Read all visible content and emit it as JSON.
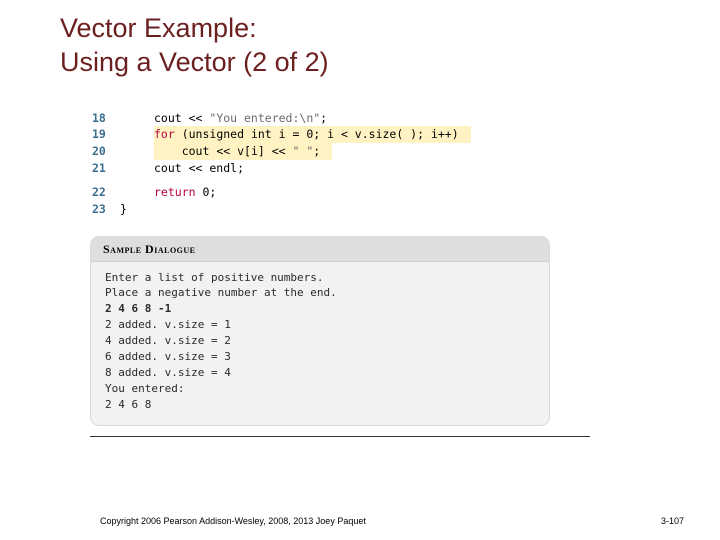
{
  "title_color": "#6b1f1f",
  "title_line1": "Vector Example:",
  "title_line2": "Using a Vector (2 of 2)",
  "lineno_color": "#3a6e8f",
  "code": {
    "r18": {
      "no": "18",
      "prefix": "cout << ",
      "str": "\"You entered:\\n\"",
      "suffix": ";"
    },
    "r19": {
      "no": "19",
      "kw": "for",
      "text": " (unsigned int i = 0; i < v.size( ); i++)"
    },
    "r20": {
      "no": "20",
      "indent": "    ",
      "prefix": "cout << v[i] << ",
      "str": "\" \"",
      "suffix": ";"
    },
    "r21": {
      "no": "21",
      "text": "cout << endl;"
    },
    "r22": {
      "no": "22",
      "kw": "return",
      "text": " 0;"
    },
    "r23": {
      "no": "23",
      "text": "}"
    }
  },
  "dialogue": {
    "header": "Sample Dialogue",
    "l1": "Enter a list of positive numbers.",
    "l2": "Place a negative number at the end.",
    "l3": "2 4 6 8 -1",
    "l4": "2 added. v.size = 1",
    "l5": "4 added. v.size = 2",
    "l6": "6 added. v.size = 3",
    "l7": "8 added. v.size = 4",
    "l8": "You entered:",
    "l9": "2 4 6 8"
  },
  "footer_left": "Copyright 2006 Pearson Addison-Wesley, 2008, 2013 Joey Paquet",
  "footer_right": "3-107",
  "highlight_bg": "#fff3c3",
  "keyword_color": "#b90045",
  "string_color": "#6b6b6b",
  "dialogue_header_bg": "#dedede",
  "dialogue_body_bg": "#f2f2f2"
}
